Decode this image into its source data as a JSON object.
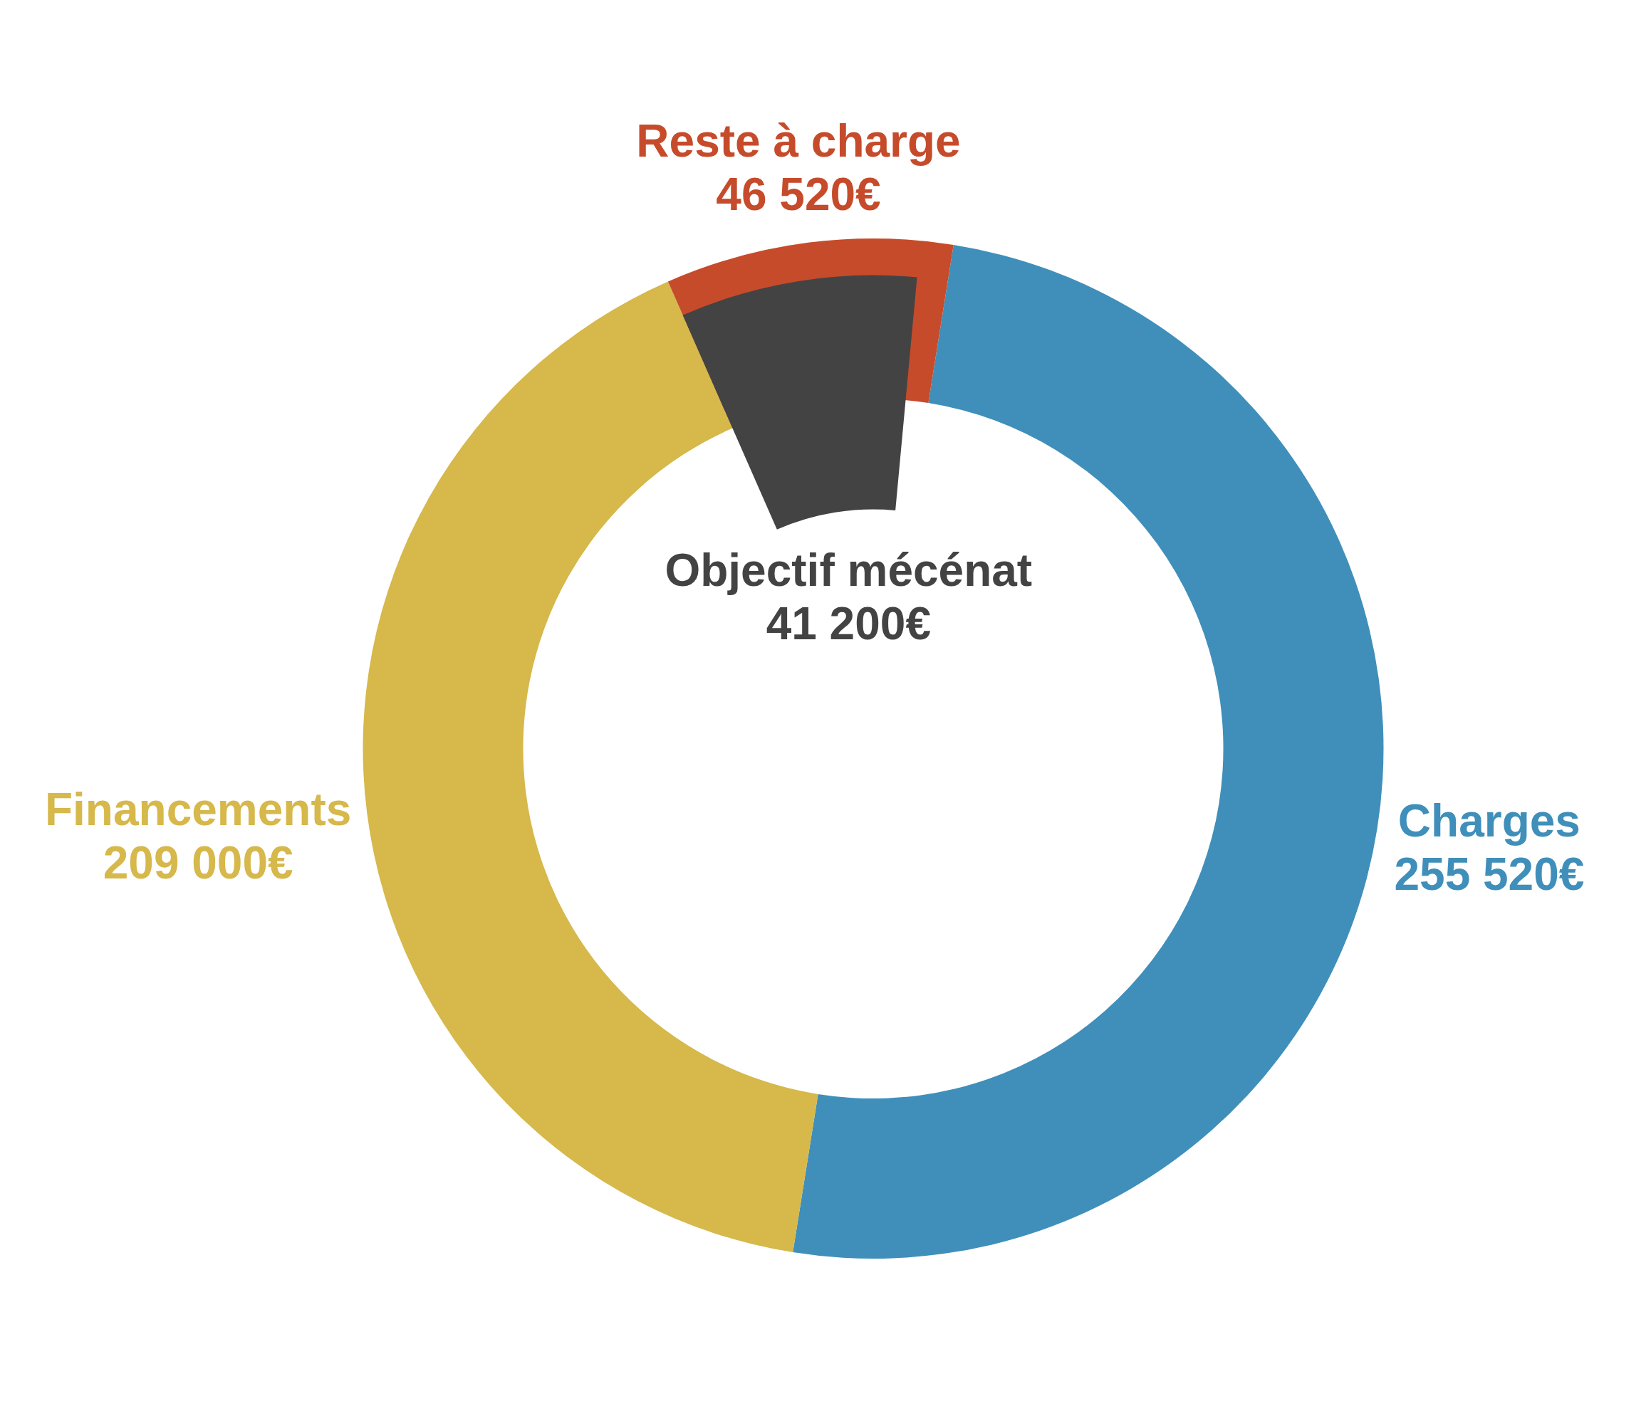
{
  "chart_data": {
    "type": "donut",
    "categories": [
      "Charges",
      "Financements",
      "Reste à charge"
    ],
    "series": [
      {
        "values": [
          255520,
          209000,
          46520
        ],
        "colors": [
          "#3f8fba",
          "#d6b84b",
          "#c64b2b"
        ],
        "value_labels": [
          "255 520€",
          "209 000€",
          "46 520€"
        ]
      },
      {
        "name": "Objectif mécénat",
        "values": [
          null,
          null,
          41200
        ],
        "color": "#434343",
        "value_labels": [
          null,
          null,
          "41 200€"
        ]
      }
    ]
  }
}
